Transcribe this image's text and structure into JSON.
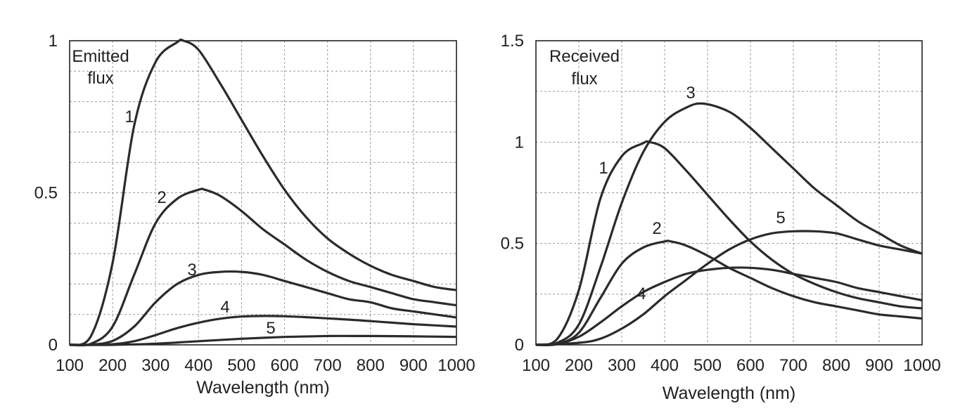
{
  "chart_data": [
    {
      "type": "line",
      "title": "",
      "annotation": [
        "Emitted",
        "flux"
      ],
      "xlabel": "Wavelength (nm)",
      "ylabel": "",
      "xlim": [
        100,
        1000
      ],
      "ylim": [
        0,
        1
      ],
      "xticks": [
        "100",
        "200",
        "300",
        "400",
        "500",
        "600",
        "700",
        "800",
        "900",
        "1000"
      ],
      "yticks": [
        {
          "value": 0,
          "label": "0"
        },
        {
          "value": 0.5,
          "label": "0.5"
        },
        {
          "value": 1,
          "label": "1"
        }
      ],
      "grid": true,
      "legend": "none",
      "series": [
        {
          "name": "1",
          "x": [
            100,
            150,
            200,
            250,
            300,
            350,
            365,
            400,
            450,
            500,
            550,
            600,
            650,
            700,
            750,
            800,
            850,
            900,
            950,
            1000
          ],
          "y": [
            0,
            0.03,
            0.27,
            0.72,
            0.93,
            0.995,
            1.0,
            0.97,
            0.86,
            0.74,
            0.62,
            0.51,
            0.42,
            0.35,
            0.3,
            0.26,
            0.23,
            0.21,
            0.19,
            0.18
          ]
        },
        {
          "name": "2",
          "x": [
            100,
            150,
            200,
            250,
            300,
            350,
            400,
            415,
            450,
            500,
            550,
            600,
            650,
            700,
            750,
            800,
            850,
            900,
            950,
            1000
          ],
          "y": [
            0,
            0.004,
            0.06,
            0.23,
            0.4,
            0.48,
            0.51,
            0.51,
            0.49,
            0.44,
            0.38,
            0.33,
            0.28,
            0.24,
            0.21,
            0.19,
            0.17,
            0.15,
            0.14,
            0.13
          ]
        },
        {
          "name": "3",
          "x": [
            100,
            150,
            200,
            250,
            300,
            350,
            400,
            450,
            500,
            550,
            600,
            650,
            700,
            750,
            800,
            850,
            900,
            950,
            1000
          ],
          "y": [
            0,
            0.001,
            0.013,
            0.06,
            0.14,
            0.2,
            0.23,
            0.24,
            0.24,
            0.23,
            0.21,
            0.19,
            0.17,
            0.15,
            0.14,
            0.12,
            0.11,
            0.1,
            0.09
          ]
        },
        {
          "name": "4",
          "x": [
            100,
            150,
            200,
            250,
            300,
            350,
            400,
            450,
            500,
            550,
            600,
            650,
            700,
            750,
            800,
            850,
            900,
            950,
            1000
          ],
          "y": [
            0,
            0,
            0.002,
            0.012,
            0.032,
            0.055,
            0.073,
            0.086,
            0.093,
            0.095,
            0.094,
            0.091,
            0.087,
            0.083,
            0.078,
            0.073,
            0.068,
            0.064,
            0.06
          ]
        },
        {
          "name": "5",
          "x": [
            100,
            200,
            300,
            400,
            500,
            600,
            700,
            800,
            900,
            1000
          ],
          "y": [
            0,
            0,
            0.004,
            0.012,
            0.02,
            0.026,
            0.029,
            0.029,
            0.028,
            0.026
          ]
        }
      ]
    },
    {
      "type": "line",
      "title": "",
      "annotation": [
        "Received",
        "flux"
      ],
      "xlabel": "Wavelength (nm)",
      "ylabel": "",
      "xlim": [
        100,
        1000
      ],
      "ylim": [
        0,
        1.5
      ],
      "xticks": [
        "100",
        "200",
        "300",
        "400",
        "500",
        "600",
        "700",
        "800",
        "900",
        "1000"
      ],
      "yticks": [
        {
          "value": 0,
          "label": "0"
        },
        {
          "value": 0.5,
          "label": "0.5"
        },
        {
          "value": 1,
          "label": "1"
        },
        {
          "value": 1.5,
          "label": "1.5"
        }
      ],
      "grid": true,
      "legend": "none",
      "series": [
        {
          "name": "1",
          "x": [
            100,
            150,
            200,
            250,
            300,
            350,
            365,
            400,
            450,
            500,
            550,
            600,
            650,
            700,
            750,
            800,
            850,
            900,
            950,
            1000
          ],
          "y": [
            0,
            0.03,
            0.27,
            0.72,
            0.93,
            0.995,
            1.0,
            0.97,
            0.86,
            0.74,
            0.62,
            0.51,
            0.42,
            0.35,
            0.3,
            0.26,
            0.23,
            0.21,
            0.19,
            0.18
          ]
        },
        {
          "name": "2",
          "x": [
            100,
            150,
            200,
            250,
            300,
            350,
            400,
            415,
            450,
            500,
            550,
            600,
            650,
            700,
            750,
            800,
            850,
            900,
            950,
            1000
          ],
          "y": [
            0,
            0.004,
            0.06,
            0.23,
            0.4,
            0.48,
            0.51,
            0.51,
            0.49,
            0.44,
            0.38,
            0.33,
            0.28,
            0.24,
            0.21,
            0.19,
            0.17,
            0.15,
            0.14,
            0.13
          ]
        },
        {
          "name": "3",
          "x": [
            100,
            150,
            200,
            250,
            300,
            350,
            400,
            450,
            490,
            550,
            600,
            650,
            700,
            750,
            800,
            850,
            900,
            950,
            1000
          ],
          "y": [
            0,
            0.01,
            0.1,
            0.38,
            0.7,
            0.95,
            1.1,
            1.17,
            1.19,
            1.15,
            1.07,
            0.97,
            0.87,
            0.77,
            0.69,
            0.61,
            0.55,
            0.49,
            0.45
          ]
        },
        {
          "name": "4",
          "x": [
            100,
            150,
            200,
            250,
            300,
            350,
            400,
            450,
            500,
            550,
            600,
            650,
            700,
            750,
            800,
            850,
            900,
            950,
            1000
          ],
          "y": [
            0,
            0.004,
            0.04,
            0.11,
            0.19,
            0.26,
            0.31,
            0.35,
            0.37,
            0.38,
            0.38,
            0.37,
            0.35,
            0.33,
            0.31,
            0.28,
            0.26,
            0.24,
            0.22
          ]
        },
        {
          "name": "5",
          "x": [
            100,
            200,
            250,
            300,
            350,
            400,
            450,
            500,
            550,
            600,
            650,
            700,
            750,
            800,
            850,
            900,
            950,
            1000
          ],
          "y": [
            0,
            0.01,
            0.03,
            0.08,
            0.15,
            0.24,
            0.32,
            0.4,
            0.47,
            0.52,
            0.55,
            0.56,
            0.56,
            0.55,
            0.52,
            0.49,
            0.47,
            0.45
          ]
        }
      ]
    }
  ]
}
